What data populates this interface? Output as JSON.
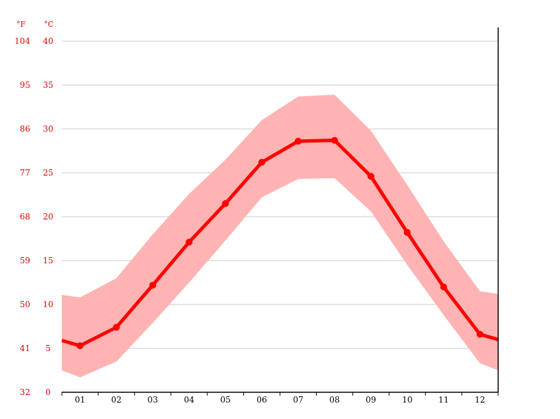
{
  "chart_data": {
    "type": "line",
    "title": "",
    "units": {
      "left": "°F",
      "right": "°C"
    },
    "categories": [
      "01",
      "02",
      "03",
      "04",
      "05",
      "06",
      "07",
      "08",
      "09",
      "10",
      "11",
      "12"
    ],
    "yticks_c": [
      0,
      5,
      10,
      15,
      20,
      25,
      30,
      35,
      40
    ],
    "yticks_f": [
      "32",
      "41",
      "50",
      "59",
      "68",
      "77",
      "86",
      "95",
      "104"
    ],
    "ylim": [
      0,
      40
    ],
    "grid": true,
    "series": [
      {
        "role": "mean",
        "values": [
          5.3,
          7.4,
          12.2,
          17.1,
          21.5,
          26.2,
          28.6,
          28.7,
          24.6,
          18.2,
          12.0,
          6.6
        ]
      },
      {
        "role": "max",
        "values": [
          10.8,
          13.0,
          18.0,
          22.6,
          26.5,
          31.0,
          33.7,
          33.9,
          29.8,
          23.6,
          17.2,
          11.5
        ]
      },
      {
        "role": "min",
        "values": [
          1.7,
          3.5,
          7.9,
          12.5,
          17.3,
          22.2,
          24.3,
          24.4,
          20.6,
          14.5,
          8.8,
          3.3
        ]
      }
    ],
    "edge": {
      "mean_start": 5.9,
      "mean_end": 6.0,
      "max_start": 11.1,
      "max_end": 11.2,
      "min_start": 2.5,
      "min_end": 2.5
    },
    "colors": {
      "mean": "#ff0000",
      "band": "#ffb3b3",
      "tick_y": "#e00000",
      "tick_x": "#000000",
      "grid": "#c8c8c8"
    }
  }
}
